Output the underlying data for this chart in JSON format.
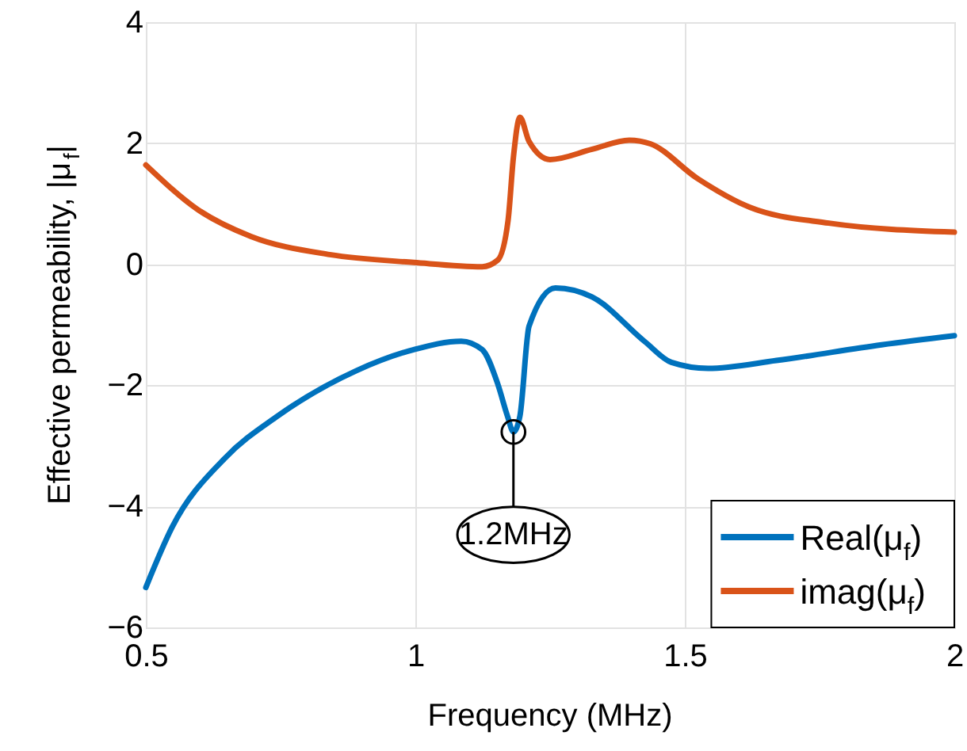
{
  "chart_data": {
    "type": "line",
    "xlabel": "Frequency (MHz)",
    "ylabel": "Effective permeability, |μ$_{f}$|",
    "xlim": [
      0.5,
      2
    ],
    "xticks": [
      0.5,
      1,
      1.5,
      2
    ],
    "ylim": [
      -6,
      4
    ],
    "yticks": [
      -6,
      -4,
      -2,
      0,
      2,
      4
    ],
    "grid": true,
    "legend": "bottom right",
    "marker": "none",
    "line_style": "solid",
    "series": [
      {
        "name": "Real(μ$_{f}$)",
        "color": "#0072bd",
        "x": [
          0.5,
          0.549,
          0.646,
          0.744,
          0.89,
          0.997,
          1.085,
          1.124,
          1.153,
          1.171,
          1.182,
          1.194,
          1.211,
          1.26,
          1.328,
          1.426,
          1.475,
          1.543,
          1.67,
          1.865,
          2.0
        ],
        "values": [
          -5.34,
          -4.34,
          -3.21,
          -2.51,
          -1.76,
          -1.41,
          -1.27,
          -1.41,
          -1.98,
          -2.51,
          -2.77,
          -2.51,
          -1.02,
          -0.39,
          -0.54,
          -1.28,
          -1.62,
          -1.72,
          -1.59,
          -1.33,
          -1.18
        ]
      },
      {
        "name": "imag(μ$_{f}$)",
        "color": "#d95319",
        "x": [
          0.5,
          0.597,
          0.695,
          0.841,
          0.997,
          1.124,
          1.153,
          1.172,
          1.182,
          1.194,
          1.211,
          1.25,
          1.328,
          1.397,
          1.436,
          1.523,
          1.621,
          1.767,
          2.0
        ],
        "values": [
          1.64,
          0.9,
          0.46,
          0.16,
          0.03,
          -0.04,
          0.07,
          0.72,
          1.77,
          2.43,
          2.03,
          1.73,
          1.9,
          2.05,
          1.99,
          1.42,
          0.94,
          0.68,
          0.53
        ]
      }
    ],
    "annotations": [
      {
        "text": "1.2MHz",
        "x": 1.182,
        "y": -2.77
      }
    ]
  }
}
